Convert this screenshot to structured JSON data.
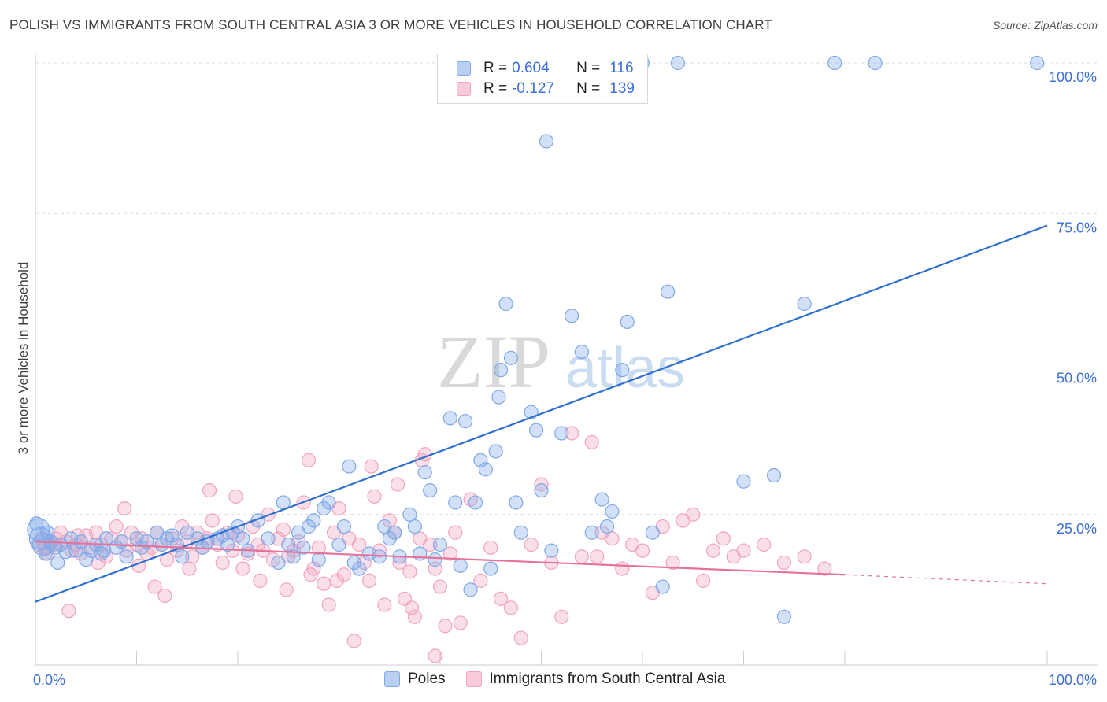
{
  "title": "POLISH VS IMMIGRANTS FROM SOUTH CENTRAL ASIA 3 OR MORE VEHICLES IN HOUSEHOLD CORRELATION CHART",
  "source": "Source: ZipAtlas.com",
  "watermark": {
    "zip": "ZIP",
    "atlas": "atlas"
  },
  "legend": {
    "rows": [
      {
        "r_label": "R =",
        "r_value": "0.604",
        "n_label": "N =",
        "n_value": "116"
      },
      {
        "r_label": "R =",
        "r_value": "-0.127",
        "n_label": "N =",
        "n_value": "139"
      }
    ]
  },
  "bottom_legend": {
    "poles": "Poles",
    "immigrants": "Immigrants from South Central Asia"
  },
  "chart_data": {
    "type": "scatter",
    "title": "POLISH VS IMMIGRANTS FROM SOUTH CENTRAL ASIA 3 OR MORE VEHICLES IN HOUSEHOLD CORRELATION CHART",
    "xlabel": "",
    "ylabel": "3 or more Vehicles in Household",
    "xlim": [
      0,
      100
    ],
    "ylim": [
      0,
      100
    ],
    "x_tick_labels": [
      "0.0%",
      "100.0%"
    ],
    "y_tick_labels": [
      "25.0%",
      "50.0%",
      "75.0%",
      "100.0%"
    ],
    "y_ticks": [
      25,
      50,
      75,
      100
    ],
    "grid": true,
    "legend_position": "top-center",
    "colors": {
      "poles": "#7fa8e8",
      "poles_line": "#2e6fd1",
      "immigrants": "#f2a3bd",
      "immigrants_line": "#e5729a",
      "tick_text": "#3a6fd8"
    },
    "series": [
      {
        "name": "Poles",
        "r": 0.604,
        "n": 116,
        "trend": {
          "x": [
            0,
            100
          ],
          "y": [
            10.5,
            73
          ]
        },
        "points": [
          [
            0.3,
            22.5
          ],
          [
            0.5,
            21
          ],
          [
            0.8,
            20
          ],
          [
            1,
            18.5
          ],
          [
            1.2,
            22
          ],
          [
            1.5,
            20.5
          ],
          [
            2,
            19.5
          ],
          [
            2.5,
            20
          ],
          [
            3,
            18.8
          ],
          [
            3.5,
            21
          ],
          [
            4,
            19
          ],
          [
            4.5,
            20.5
          ],
          [
            5,
            17.5
          ],
          [
            5.5,
            19
          ],
          [
            6,
            20
          ],
          [
            6.5,
            18.5
          ],
          [
            7,
            21
          ],
          [
            8,
            19.5
          ],
          [
            8.5,
            20.5
          ],
          [
            9,
            18
          ],
          [
            10,
            21
          ],
          [
            10.5,
            19.5
          ],
          [
            11,
            20.5
          ],
          [
            12,
            22
          ],
          [
            12.5,
            20
          ],
          [
            13,
            21
          ],
          [
            14,
            20
          ],
          [
            14.5,
            18
          ],
          [
            15,
            22
          ],
          [
            16,
            21
          ],
          [
            16.5,
            19.5
          ],
          [
            17,
            20.5
          ],
          [
            18,
            21
          ],
          [
            19,
            20
          ],
          [
            19.5,
            22
          ],
          [
            20,
            23
          ],
          [
            20.5,
            21
          ],
          [
            21,
            19
          ],
          [
            22,
            24
          ],
          [
            23,
            21
          ],
          [
            24,
            17
          ],
          [
            24.5,
            27
          ],
          [
            25,
            20
          ],
          [
            25.5,
            18
          ],
          [
            26,
            22
          ],
          [
            27,
            23
          ],
          [
            27.5,
            24
          ],
          [
            28,
            17.5
          ],
          [
            28.5,
            26
          ],
          [
            29,
            27
          ],
          [
            30,
            20
          ],
          [
            30.5,
            23
          ],
          [
            31,
            33
          ],
          [
            31.5,
            17
          ],
          [
            32,
            16
          ],
          [
            33,
            18.5
          ],
          [
            34,
            18
          ],
          [
            35,
            21
          ],
          [
            35.5,
            22
          ],
          [
            36,
            18
          ],
          [
            37,
            25
          ],
          [
            37.5,
            23
          ],
          [
            38,
            18.5
          ],
          [
            38.5,
            32
          ],
          [
            39,
            29
          ],
          [
            40,
            20
          ],
          [
            41,
            41
          ],
          [
            42,
            16.5
          ],
          [
            41.5,
            27
          ],
          [
            42.5,
            40.5
          ],
          [
            43,
            12.5
          ],
          [
            44,
            34
          ],
          [
            44.5,
            32.5
          ],
          [
            45,
            16
          ],
          [
            45.5,
            35.5
          ],
          [
            46,
            49
          ],
          [
            46.5,
            60
          ],
          [
            47,
            51
          ],
          [
            45.8,
            44.5
          ],
          [
            48,
            22
          ],
          [
            49,
            42
          ],
          [
            49.5,
            39
          ],
          [
            50,
            29
          ],
          [
            50.5,
            87
          ],
          [
            51,
            19
          ],
          [
            52,
            38.5
          ],
          [
            53,
            58
          ],
          [
            54,
            52
          ],
          [
            55,
            22
          ],
          [
            56,
            27.5
          ],
          [
            56.5,
            23
          ],
          [
            57,
            25.5
          ],
          [
            58,
            49
          ],
          [
            58.5,
            57
          ],
          [
            60,
            100
          ],
          [
            61,
            22
          ],
          [
            62,
            13
          ],
          [
            62.5,
            62
          ],
          [
            63.5,
            100
          ],
          [
            70,
            30.5
          ],
          [
            73,
            31.5
          ],
          [
            74,
            8
          ],
          [
            76,
            60
          ],
          [
            79,
            100
          ],
          [
            83,
            100
          ],
          [
            99,
            100
          ],
          [
            0.1,
            23.5
          ],
          [
            2.2,
            17
          ],
          [
            6.8,
            19
          ],
          [
            13.5,
            21.5
          ],
          [
            18.5,
            21.5
          ],
          [
            26.5,
            19.5
          ],
          [
            34.5,
            23
          ],
          [
            39.5,
            17.5
          ],
          [
            43.5,
            27
          ],
          [
            47.5,
            27
          ]
        ]
      },
      {
        "name": "Immigrants from South Central Asia",
        "r": -0.127,
        "n": 139,
        "trend": {
          "x": [
            0,
            80
          ],
          "y": [
            20.5,
            15
          ],
          "dashed_to": [
            100,
            13.5
          ]
        },
        "points": [
          [
            0.3,
            20
          ],
          [
            0.6,
            21
          ],
          [
            0.9,
            19.5
          ],
          [
            1.2,
            18.5
          ],
          [
            1.5,
            20
          ],
          [
            2,
            21
          ],
          [
            2.5,
            22
          ],
          [
            3,
            20.5
          ],
          [
            3.3,
            9
          ],
          [
            3.6,
            19
          ],
          [
            4,
            20
          ],
          [
            4.5,
            18.5
          ],
          [
            5,
            21.5
          ],
          [
            5.5,
            19.5
          ],
          [
            6,
            22
          ],
          [
            6.5,
            20
          ],
          [
            7,
            18
          ],
          [
            7.5,
            21
          ],
          [
            8,
            23
          ],
          [
            8.5,
            20.5
          ],
          [
            9,
            19
          ],
          [
            9.5,
            22
          ],
          [
            10,
            20
          ],
          [
            10.5,
            21
          ],
          [
            11,
            18.5
          ],
          [
            11.5,
            19.5
          ],
          [
            12,
            22
          ],
          [
            12.5,
            20
          ],
          [
            13,
            17.5
          ],
          [
            13.5,
            21
          ],
          [
            14,
            19
          ],
          [
            14.5,
            23
          ],
          [
            15,
            20.5
          ],
          [
            15.5,
            18
          ],
          [
            16,
            22
          ],
          [
            16.5,
            19.5
          ],
          [
            17,
            21
          ],
          [
            17.5,
            24
          ],
          [
            18,
            20
          ],
          [
            18.5,
            17
          ],
          [
            19,
            22
          ],
          [
            19.5,
            19
          ],
          [
            20,
            21.5
          ],
          [
            20.5,
            16
          ],
          [
            21,
            18.5
          ],
          [
            21.5,
            23
          ],
          [
            22,
            20
          ],
          [
            22.5,
            19
          ],
          [
            23,
            25
          ],
          [
            23.5,
            17.5
          ],
          [
            24,
            21
          ],
          [
            24.5,
            22.5
          ],
          [
            25,
            18
          ],
          [
            25.5,
            19
          ],
          [
            26,
            20.5
          ],
          [
            26.5,
            27
          ],
          [
            27,
            34
          ],
          [
            27.5,
            16
          ],
          [
            28,
            19.5
          ],
          [
            28.5,
            13.5
          ],
          [
            29,
            10
          ],
          [
            29.5,
            22
          ],
          [
            30,
            26
          ],
          [
            30.5,
            15
          ],
          [
            31,
            21
          ],
          [
            31.5,
            4
          ],
          [
            32,
            20
          ],
          [
            32.5,
            17
          ],
          [
            33,
            14
          ],
          [
            33.5,
            28
          ],
          [
            34,
            19
          ],
          [
            34.5,
            10
          ],
          [
            35,
            24
          ],
          [
            35.5,
            22
          ],
          [
            36,
            17
          ],
          [
            36.5,
            11
          ],
          [
            37,
            15.5
          ],
          [
            37.5,
            8
          ],
          [
            38,
            21
          ],
          [
            38.5,
            35
          ],
          [
            39,
            20
          ],
          [
            39.5,
            16
          ],
          [
            40,
            13
          ],
          [
            40.5,
            6.5
          ],
          [
            41,
            18.5
          ],
          [
            41.5,
            22
          ],
          [
            42,
            7
          ],
          [
            43,
            27.5
          ],
          [
            44,
            14
          ],
          [
            45,
            19.5
          ],
          [
            46,
            11
          ],
          [
            47,
            9.5
          ],
          [
            48,
            4.5
          ],
          [
            49,
            20
          ],
          [
            50,
            30
          ],
          [
            51,
            17
          ],
          [
            52,
            8
          ],
          [
            53,
            38.5
          ],
          [
            54,
            18
          ],
          [
            55,
            37
          ],
          [
            55.5,
            18
          ],
          [
            56,
            22
          ],
          [
            57,
            21
          ],
          [
            58,
            16
          ],
          [
            59,
            20
          ],
          [
            60,
            19
          ],
          [
            61,
            12
          ],
          [
            62,
            23
          ],
          [
            63,
            17
          ],
          [
            64,
            24
          ],
          [
            65,
            25
          ],
          [
            66,
            14
          ],
          [
            67,
            19
          ],
          [
            68,
            21
          ],
          [
            69,
            18
          ],
          [
            70,
            19
          ],
          [
            72,
            20
          ],
          [
            74,
            17
          ],
          [
            76,
            18
          ],
          [
            78,
            16
          ],
          [
            1.8,
            20
          ],
          [
            4.2,
            21.5
          ],
          [
            6.2,
            17
          ],
          [
            8.8,
            26
          ],
          [
            10.2,
            16.5
          ],
          [
            11.8,
            13
          ],
          [
            12.8,
            11.5
          ],
          [
            15.2,
            16
          ],
          [
            17.2,
            29
          ],
          [
            19.8,
            28
          ],
          [
            22.2,
            14
          ],
          [
            24.8,
            12.5
          ],
          [
            27.2,
            15
          ],
          [
            29.8,
            14
          ],
          [
            33.2,
            33
          ],
          [
            35.8,
            30
          ],
          [
            37.2,
            9.5
          ],
          [
            38.2,
            34
          ],
          [
            39.5,
            1.5
          ]
        ]
      }
    ]
  }
}
